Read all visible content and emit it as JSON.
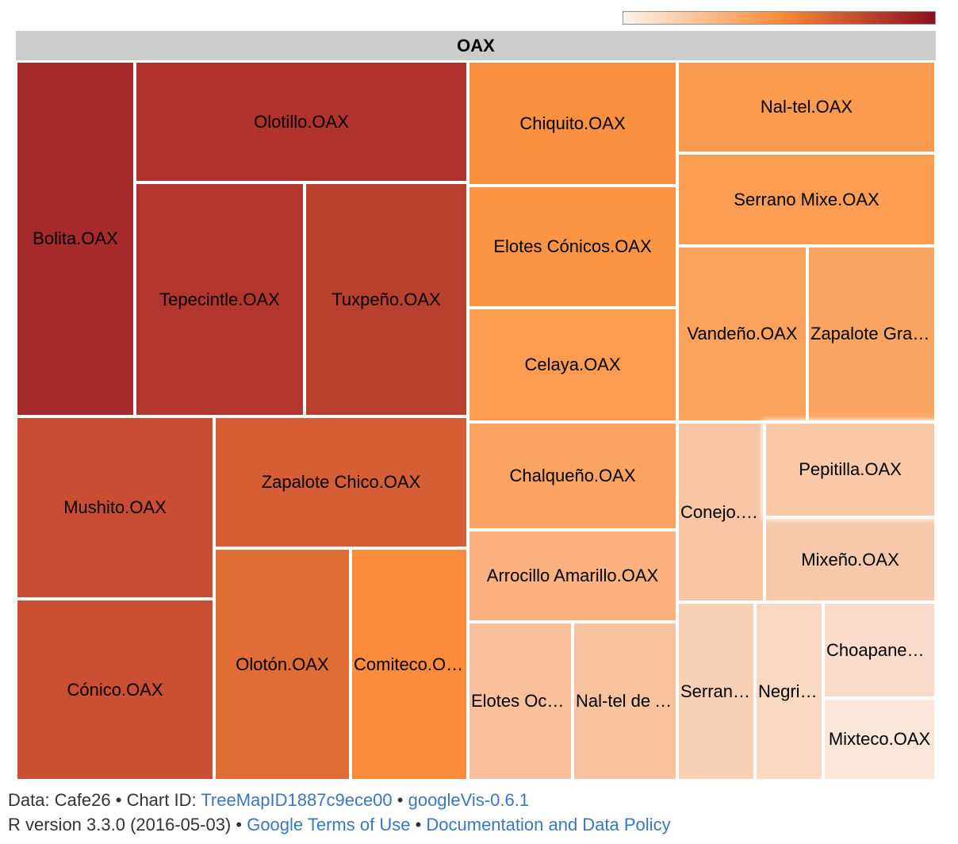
{
  "chart_data": {
    "type": "treemap",
    "root": "OAX",
    "color_scale": {
      "low": "#fdf3ec",
      "mid": "#fb8c3a",
      "high": "#8b0e1f"
    },
    "cells": [
      {
        "name": "Bolita.OAX",
        "color": "#a62a2a"
      },
      {
        "name": "Olotillo.OAX",
        "color": "#b0322d"
      },
      {
        "name": "Tepecintle.OAX",
        "color": "#b3362e"
      },
      {
        "name": "Tuxpeño.OAX",
        "color": "#b9402f"
      },
      {
        "name": "Mushito.OAX",
        "color": "#c84d33"
      },
      {
        "name": "Zapalote Chico.OAX",
        "color": "#d65e35"
      },
      {
        "name": "Cónico.OAX",
        "color": "#ca4f33"
      },
      {
        "name": "Olotón.OAX",
        "color": "#e06c36"
      },
      {
        "name": "Comiteco.OAX",
        "color": "#fb8c3b"
      },
      {
        "name": "Chiquito.OAX",
        "color": "#fb9040"
      },
      {
        "name": "Elotes Cónicos.OAX",
        "color": "#fb9545"
      },
      {
        "name": "Celaya.OAX",
        "color": "#fb9c51"
      },
      {
        "name": "Chalqueño.OAX",
        "color": "#fba462"
      },
      {
        "name": "Arrocillo Amarillo.OAX",
        "color": "#fbb280"
      },
      {
        "name": "Elotes Occidentales.OAX",
        "color": "#f8c19c"
      },
      {
        "name": "Nal-tel de Altura.OAX",
        "color": "#f7c29e"
      },
      {
        "name": "Nal-tel.OAX",
        "color": "#fb9b4f"
      },
      {
        "name": "Serrano Mixe.OAX",
        "color": "#fb9e53"
      },
      {
        "name": "Vandeño.OAX",
        "color": "#fba35d"
      },
      {
        "name": "Zapalote Grande.OAX",
        "color": "#fba563"
      },
      {
        "name": "Conejo.OAX",
        "color": "#f8c6a4"
      },
      {
        "name": "Pepitilla.OAX",
        "color": "#f8c8a7"
      },
      {
        "name": "Mixeño.OAX",
        "color": "#f7c9aa"
      },
      {
        "name": "Serrano.OAX",
        "color": "#f8d0b6"
      },
      {
        "name": "Negrito.OAX",
        "color": "#f9d8c3"
      },
      {
        "name": "Choapaneco.OAX",
        "color": "#f9dccb"
      },
      {
        "name": "Mixteco.OAX",
        "color": "#fbe6da"
      }
    ]
  },
  "footer": {
    "line1_prefix": "Data: Cafe26 • Chart ID: ",
    "chart_id_link": "TreeMapID1887c9ece00",
    "sep1": " • ",
    "version_link": "googleVis-0.6.1",
    "line2_prefix": "R version 3.3.0 (2016-05-03) • ",
    "terms_link": "Google Terms of Use",
    "sep2": " • ",
    "policy_link": "Documentation and Data Policy"
  }
}
